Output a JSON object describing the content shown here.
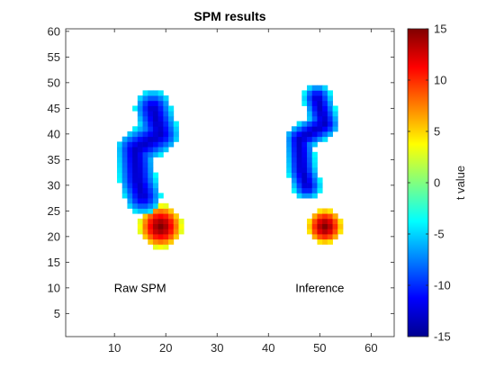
{
  "chart_data": {
    "type": "heatmap",
    "title": "SPM results",
    "xlabel": "",
    "ylabel": "",
    "xlim": [
      0.5,
      64.5
    ],
    "ylim": [
      0.5,
      60.5
    ],
    "xticks": [
      10,
      20,
      30,
      40,
      50,
      60
    ],
    "yticks": [
      5,
      10,
      15,
      20,
      25,
      30,
      35,
      40,
      45,
      50,
      55,
      60
    ],
    "grid": false,
    "colormap": "jet",
    "colorbar": {
      "label": "t value",
      "range": [
        -15,
        15
      ],
      "ticks": [
        -15,
        -10,
        -5,
        0,
        5,
        10,
        15
      ]
    },
    "annotations": [
      {
        "text": "Raw SPM",
        "x": 15,
        "y": 10
      },
      {
        "text": "Inference",
        "x": 50,
        "y": 10
      }
    ],
    "blobs": [
      {
        "panel": "Raw SPM",
        "center": [
          19,
          22
        ],
        "radius": 4.2,
        "peak_t": 15
      },
      {
        "panel": "Raw SPM",
        "center": [
          15,
          36
        ],
        "peak_t": -13
      },
      {
        "panel": "Inference",
        "center": [
          51,
          22
        ],
        "radius": 3.5,
        "peak_t": 15
      },
      {
        "panel": "Inference",
        "center": [
          47,
          38
        ],
        "peak_t": -13
      }
    ],
    "threshold_t": 3.0
  }
}
